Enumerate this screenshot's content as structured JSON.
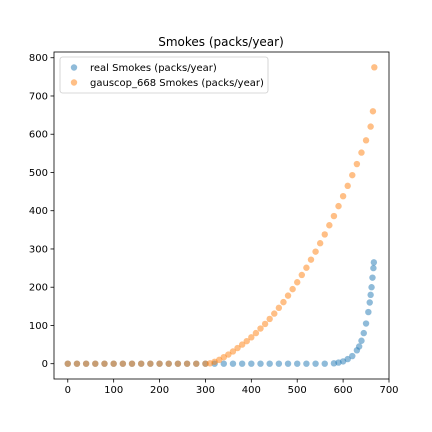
{
  "chart_data": {
    "type": "scatter",
    "title": "Smokes (packs/year)",
    "xlabel": "",
    "ylabel": "",
    "xlim": [
      -30,
      700
    ],
    "ylim": [
      -40,
      815
    ],
    "xticks": [
      0,
      100,
      200,
      300,
      400,
      500,
      600,
      700
    ],
    "yticks": [
      0,
      100,
      200,
      300,
      400,
      500,
      600,
      700,
      800
    ],
    "grid": false,
    "legend_position": "top-left",
    "series": [
      {
        "name": "real Smokes (packs/year)",
        "color": "#1f77b4",
        "x": [
          0,
          20,
          40,
          60,
          80,
          100,
          120,
          140,
          160,
          180,
          200,
          220,
          240,
          260,
          280,
          300,
          320,
          340,
          360,
          380,
          400,
          420,
          440,
          460,
          480,
          500,
          520,
          540,
          560,
          580,
          590,
          600,
          610,
          620,
          630,
          635,
          640,
          645,
          650,
          655,
          658,
          660,
          662,
          664,
          666,
          667
        ],
        "y": [
          0,
          0,
          0,
          0,
          0,
          0,
          0,
          0,
          0,
          0,
          0,
          0,
          0,
          0,
          0,
          0,
          0,
          0,
          0,
          0,
          0,
          0,
          0,
          0,
          0,
          0,
          0,
          0,
          0,
          1,
          3,
          6,
          12,
          20,
          35,
          45,
          60,
          80,
          105,
          135,
          160,
          180,
          200,
          225,
          250,
          265
        ]
      },
      {
        "name": "gauscop_668 Smokes (packs/year)",
        "color": "#ff7f0e",
        "x": [
          0,
          20,
          40,
          60,
          80,
          100,
          120,
          140,
          160,
          180,
          200,
          220,
          240,
          260,
          280,
          300,
          310,
          320,
          330,
          340,
          350,
          360,
          370,
          380,
          390,
          400,
          410,
          420,
          430,
          440,
          450,
          460,
          470,
          480,
          490,
          500,
          510,
          520,
          530,
          540,
          550,
          560,
          570,
          580,
          590,
          600,
          610,
          620,
          630,
          640,
          650,
          660,
          665,
          668
        ],
        "y": [
          0,
          0,
          0,
          0,
          0,
          0,
          0,
          0,
          0,
          0,
          0,
          0,
          0,
          0,
          0,
          0,
          1,
          5,
          10,
          17,
          24,
          32,
          41,
          50,
          59,
          69,
          80,
          92,
          104,
          117,
          131,
          146,
          161,
          178,
          195,
          213,
          232,
          251,
          272,
          293,
          315,
          338,
          362,
          386,
          412,
          438,
          465,
          493,
          522,
          552,
          584,
          620,
          660,
          775
        ]
      }
    ]
  }
}
